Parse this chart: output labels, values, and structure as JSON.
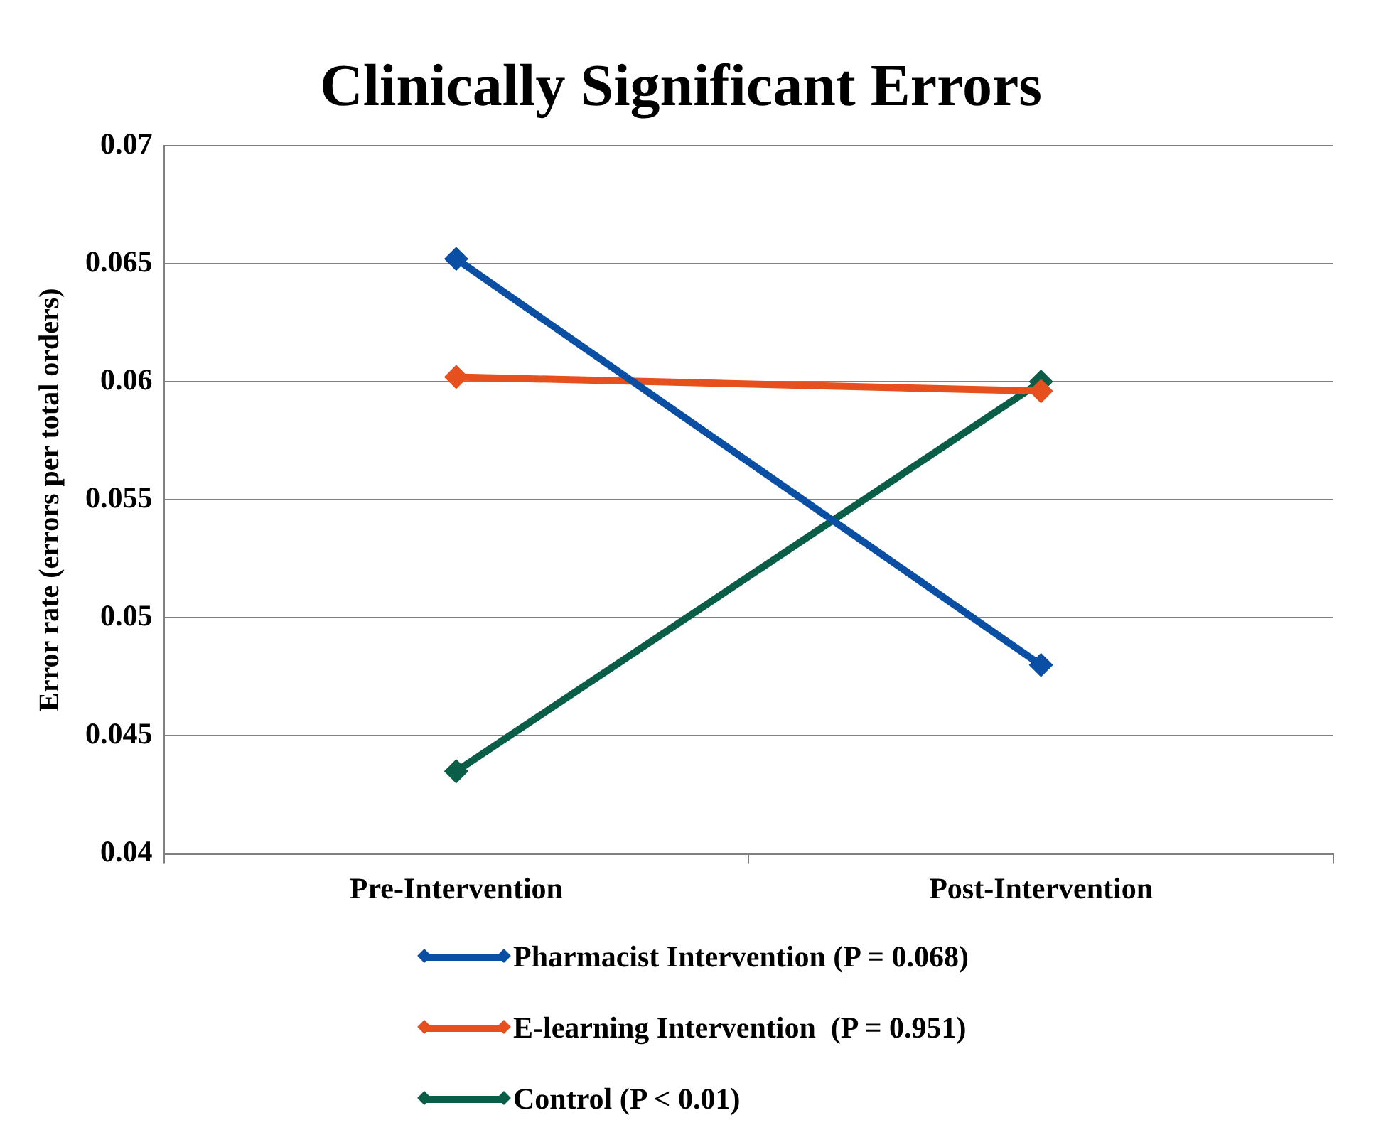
{
  "chart_data": {
    "type": "line",
    "title": "Clinically Significant Errors",
    "ylabel": "Error rate (errors per total orders)",
    "categories": [
      "Pre-Intervention",
      "Post-Intervention"
    ],
    "series": [
      {
        "name": "Pharmacist Intervention (P = 0.068)",
        "color": "#0a4fa3",
        "values": [
          0.0652,
          0.048
        ]
      },
      {
        "name": "E-learning Intervention  (P = 0.951)",
        "color": "#e5501e",
        "values": [
          0.0602,
          0.0596
        ]
      },
      {
        "name": "Control (P < 0.01)",
        "color": "#0a5e48",
        "values": [
          0.0435,
          0.06
        ]
      }
    ],
    "ylim": [
      0.04,
      0.07
    ],
    "yticks": [
      0.04,
      0.045,
      0.05,
      0.055,
      0.06,
      0.065,
      0.07
    ],
    "grid": "y",
    "legend": "bottom",
    "marker": "diamond",
    "line_style": "solid"
  }
}
